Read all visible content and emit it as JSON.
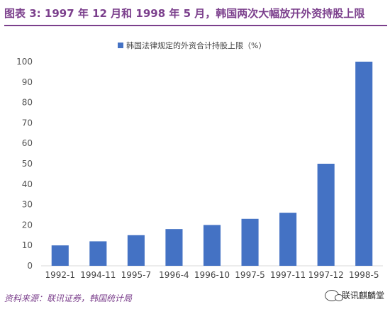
{
  "header": {
    "title": "图表 3: 1997 年 12 月和 1998 年 5 月，韩国两次大幅放开外资持股上限"
  },
  "footer": {
    "source": "资料来源：联讯证券，韩国统计局",
    "watermark": "联讯麒麟堂"
  },
  "chart_data": {
    "type": "bar",
    "title": "",
    "xlabel": "",
    "ylabel": "",
    "legend": {
      "position": "top",
      "label": "韩国法律规定的外资合计持股上限（%）"
    },
    "categories": [
      "1992-1",
      "1994-11",
      "1995-7",
      "1996-4",
      "1996-10",
      "1997-5",
      "1997-11",
      "1997-12",
      "1998-5"
    ],
    "series": [
      {
        "name": "韩国法律规定的外资合计持股上限（%）",
        "values": [
          10,
          12,
          15,
          18,
          20,
          23,
          26,
          50,
          100
        ],
        "color": "#4472c4"
      }
    ],
    "ylim": [
      0,
      100
    ],
    "yticks": [
      0,
      10,
      20,
      30,
      40,
      50,
      60,
      70,
      80,
      90,
      100
    ],
    "grid": false
  }
}
